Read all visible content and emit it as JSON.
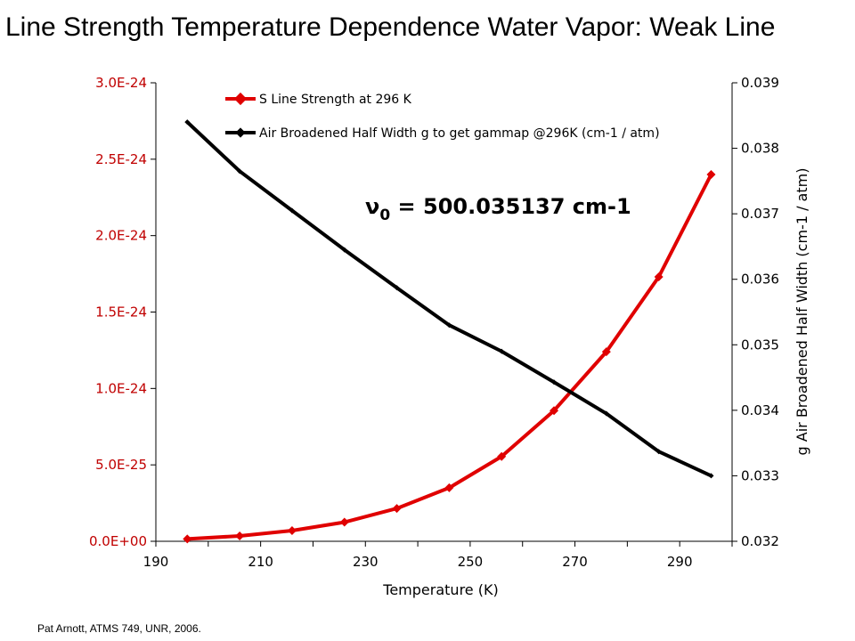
{
  "slide": {
    "title": "Line Strength Temperature Dependence Water Vapor: Weak Line",
    "credit": "Pat Arnott, ATMS 749, UNR, 2006."
  },
  "chart_data": {
    "type": "line",
    "xlabel": "Temperature (K)",
    "ylabel_right": "g Air Broadened Half Width (cm-1 / atm)",
    "xlim": [
      190,
      300
    ],
    "ylim_left": [
      0,
      3e-24
    ],
    "ylim_right": [
      0.032,
      0.039
    ],
    "x_ticks": [
      "190",
      "210",
      "230",
      "250",
      "270",
      "290"
    ],
    "y_left_ticks": [
      "0.0E+00",
      "5.0E-25",
      "1.0E-24",
      "1.5E-24",
      "2.0E-24",
      "2.5E-24",
      "3.0E-24"
    ],
    "y_right_ticks": [
      "0.032",
      "0.033",
      "0.034",
      "0.035",
      "0.036",
      "0.037",
      "0.038",
      "0.039"
    ],
    "x": [
      196,
      206,
      216,
      226,
      236,
      246,
      256,
      266,
      276,
      286,
      296
    ],
    "series": [
      {
        "name": "S Line Strength at 296 K",
        "axis": "left",
        "color": "#e00000",
        "marker": "diamond",
        "values": [
          1.5e-26,
          3.5e-26,
          7e-26,
          1.25e-25,
          2.15e-25,
          3.5e-25,
          5.55e-25,
          8.55e-25,
          1.24e-24,
          1.73e-24,
          2.4e-24
        ]
      },
      {
        "name": "Air Broadened Half Width g to get gammap @296K (cm-1 / atm)",
        "axis": "right",
        "color": "#000000",
        "marker": "diamond",
        "values": [
          0.0384,
          0.03765,
          0.03705,
          0.03645,
          0.03587,
          0.0353,
          0.0349,
          0.03443,
          0.03395,
          0.03337,
          0.033
        ]
      }
    ],
    "annotation": {
      "text_symbol": "ν",
      "text_subscript": "0",
      "text_rest": " = 500.035137 cm-1"
    },
    "legend_position": "top-inside",
    "grid": false
  }
}
